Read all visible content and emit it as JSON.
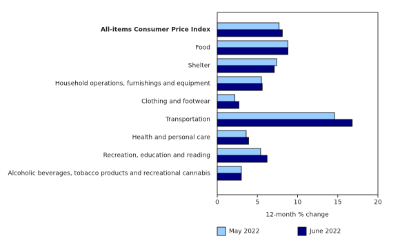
{
  "chart_data": {
    "type": "bar",
    "orientation": "horizontal",
    "x_label": "12-month % change",
    "categories": [
      "All-items Consumer Price Index",
      "Food",
      "Shelter",
      "Household operations, furnishings and equipment",
      "Clothing and footwear",
      "Transportation",
      "Health and personal care",
      "Recreation, education and reading",
      "Alcoholic beverages, tobacco products and recreational cannabis"
    ],
    "series": [
      {
        "name": "May 2022",
        "color": "#99ccff",
        "values": [
          7.7,
          8.8,
          7.4,
          5.5,
          2.2,
          14.6,
          3.6,
          5.4,
          3.0
        ]
      },
      {
        "name": "June 2022",
        "color": "#000080",
        "values": [
          8.1,
          8.8,
          7.1,
          5.6,
          2.7,
          16.8,
          3.9,
          6.2,
          3.0
        ]
      }
    ],
    "xlim": [
      0,
      20
    ],
    "xticks": [
      0,
      5,
      10,
      15,
      20
    ],
    "grid": false,
    "legend": "bottom"
  }
}
